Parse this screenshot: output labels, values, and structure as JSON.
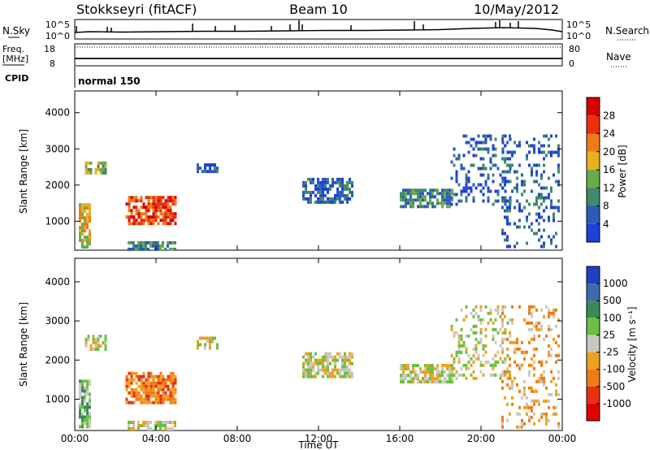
{
  "header": {
    "station": "Stokkseyri (fitACF)",
    "beam": "Beam 10",
    "date": "10/May/2012"
  },
  "summary_panels": {
    "nsky": {
      "left_label": "N.Sky",
      "ticks_left": [
        "10^5",
        "10^0"
      ],
      "ticks_right": [
        "10^5",
        "10^0"
      ],
      "right_label": "N.Search"
    },
    "freq": {
      "left_label_1": "Freq.",
      "left_label_2": "[MHz]",
      "ticks_left": [
        "18",
        "8"
      ],
      "ticks_right": [
        "80",
        "0"
      ],
      "right_label": "Nave"
    },
    "cpid": {
      "left_label": "CPID",
      "mode": "normal 150"
    }
  },
  "colors": {
    "power_scale": [
      "#1f3fdc",
      "#2e5bb8",
      "#3f8a6a",
      "#6aaa4a",
      "#e6b020",
      "#f07a18",
      "#e83010",
      "#d80000"
    ],
    "velocity_scale": [
      "#2040c0",
      "#3f6ab0",
      "#3a8a5a",
      "#6cc040",
      "#c8c8c0",
      "#f0a020",
      "#f07a18",
      "#e83010",
      "#e00000"
    ]
  },
  "chart_data": [
    {
      "type": "heatmap",
      "name": "power",
      "ylabel": "Slant Range [km]",
      "ylim": [
        200,
        4600
      ],
      "y_ticks": [
        "1000",
        "2000",
        "3000",
        "4000"
      ],
      "x_ticks": [
        "00:00",
        "04:00",
        "08:00",
        "12:00",
        "16:00",
        "20:00",
        "00:00"
      ],
      "colorbar_label": "Power [dB]",
      "colorbar_ticks": [
        "28",
        "24",
        "20",
        "16",
        "12",
        "8",
        "4"
      ],
      "regions": [
        {
          "t": [
            0.2,
            0.7
          ],
          "r": [
            300,
            1500
          ],
          "level": 4
        },
        {
          "t": [
            0.5,
            1.5
          ],
          "r": [
            2300,
            2650
          ],
          "level": 3
        },
        {
          "t": [
            2.5,
            5.0
          ],
          "r": [
            900,
            1700
          ],
          "level": 6
        },
        {
          "t": [
            2.6,
            5.0
          ],
          "r": [
            250,
            450
          ],
          "level": 2
        },
        {
          "t": [
            6.0,
            7.0
          ],
          "r": [
            2350,
            2600
          ],
          "level": 1
        },
        {
          "t": [
            11.2,
            13.6
          ],
          "r": [
            1550,
            2200
          ],
          "level": 1
        },
        {
          "t": [
            16.0,
            18.6
          ],
          "r": [
            1450,
            1900
          ],
          "level": 2
        },
        {
          "t": [
            18.5,
            21.5
          ],
          "r": [
            1500,
            3400
          ],
          "level": 1
        },
        {
          "t": [
            21.0,
            23.8
          ],
          "r": [
            300,
            3400
          ],
          "level": 1
        }
      ]
    },
    {
      "type": "heatmap",
      "name": "velocity",
      "ylabel": "Slant Range [km]",
      "ylim": [
        200,
        4600
      ],
      "y_ticks": [
        "1000",
        "2000",
        "3000",
        "4000"
      ],
      "x_ticks": [
        "00:00",
        "04:00",
        "08:00",
        "12:00",
        "16:00",
        "20:00",
        "00:00"
      ],
      "xlabel": "Time UT",
      "colorbar_label": "Velocity [m s⁻¹]",
      "colorbar_ticks": [
        "1000",
        "500",
        "100",
        "25",
        "-25",
        "-100",
        "-500",
        "-1000"
      ],
      "regions": [
        {
          "t": [
            0.2,
            0.7
          ],
          "r": [
            300,
            1500
          ],
          "level": 3
        },
        {
          "t": [
            0.5,
            1.5
          ],
          "r": [
            2300,
            2650
          ],
          "level": 4
        },
        {
          "t": [
            2.5,
            5.0
          ],
          "r": [
            900,
            1700
          ],
          "level": 6
        },
        {
          "t": [
            2.6,
            5.0
          ],
          "r": [
            250,
            450
          ],
          "level": 4
        },
        {
          "t": [
            6.0,
            7.0
          ],
          "r": [
            2350,
            2600
          ],
          "level": 4
        },
        {
          "t": [
            11.2,
            13.6
          ],
          "r": [
            1550,
            2200
          ],
          "level": 4
        },
        {
          "t": [
            16.0,
            18.6
          ],
          "r": [
            1450,
            1900
          ],
          "level": 4
        },
        {
          "t": [
            18.5,
            21.5
          ],
          "r": [
            1500,
            3400
          ],
          "level": 4
        },
        {
          "t": [
            21.0,
            23.8
          ],
          "r": [
            300,
            3400
          ],
          "level": 5
        }
      ]
    }
  ]
}
